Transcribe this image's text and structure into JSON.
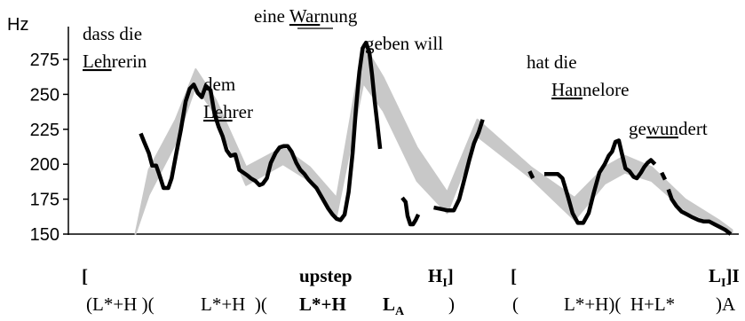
{
  "chart_data": {
    "type": "line",
    "ylabel": "Hz",
    "ylim": [
      150,
      295
    ],
    "y_ticks": [
      "150",
      "175",
      "200",
      "225",
      "250",
      "275"
    ],
    "grid": false,
    "band_color": "#c8c8c8",
    "line_color": "#000000",
    "band": [
      {
        "t": 0.1,
        "lo": 150,
        "hi": 150
      },
      {
        "t": 0.12,
        "lo": 178,
        "hi": 196
      },
      {
        "t": 0.16,
        "lo": 215,
        "hi": 232
      },
      {
        "t": 0.19,
        "lo": 256,
        "hi": 268
      },
      {
        "t": 0.22,
        "lo": 235,
        "hi": 246
      },
      {
        "t": 0.265,
        "lo": 185,
        "hi": 198
      },
      {
        "t": 0.32,
        "lo": 200,
        "hi": 212
      },
      {
        "t": 0.36,
        "lo": 188,
        "hi": 198
      },
      {
        "t": 0.4,
        "lo": 163,
        "hi": 176
      },
      {
        "t": 0.44,
        "lo": 258,
        "hi": 286
      },
      {
        "t": 0.47,
        "lo": 238,
        "hi": 262
      },
      {
        "t": 0.52,
        "lo": 188,
        "hi": 212
      },
      {
        "t": 0.565,
        "lo": 165,
        "hi": 180
      },
      {
        "t": 0.61,
        "lo": 220,
        "hi": 232
      },
      {
        "t": 0.69,
        "lo": 190,
        "hi": 198
      },
      {
        "t": 0.755,
        "lo": 160,
        "hi": 176
      },
      {
        "t": 0.8,
        "lo": 186,
        "hi": 198
      },
      {
        "t": 0.83,
        "lo": 194,
        "hi": 206
      },
      {
        "t": 0.87,
        "lo": 188,
        "hi": 198
      },
      {
        "t": 0.92,
        "lo": 167,
        "hi": 175
      },
      {
        "t": 0.97,
        "lo": 156,
        "hi": 160
      },
      {
        "t": 0.99,
        "lo": 151,
        "hi": 153
      }
    ],
    "series": [
      {
        "values": [
          [
            0.108,
            222
          ],
          [
            0.113,
            216
          ],
          [
            0.12,
            208
          ],
          [
            0.125,
            199
          ],
          [
            0.131,
            199
          ],
          [
            0.136,
            192
          ],
          [
            0.142,
            183
          ],
          [
            0.149,
            183
          ],
          [
            0.154,
            190
          ],
          [
            0.161,
            208
          ],
          [
            0.168,
            225
          ],
          [
            0.175,
            245
          ],
          [
            0.181,
            254
          ],
          [
            0.187,
            257
          ],
          [
            0.193,
            251
          ],
          [
            0.199,
            248
          ],
          [
            0.205,
            256
          ],
          [
            0.212,
            253
          ],
          [
            0.218,
            236
          ],
          [
            0.224,
            227
          ],
          [
            0.23,
            220
          ],
          [
            0.236,
            210
          ],
          [
            0.242,
            206
          ],
          [
            0.249,
            207
          ],
          [
            0.255,
            196
          ],
          [
            0.261,
            194
          ],
          [
            0.267,
            192
          ],
          [
            0.272,
            190
          ],
          [
            0.279,
            188
          ],
          [
            0.285,
            185
          ],
          [
            0.29,
            186
          ],
          [
            0.296,
            190
          ],
          [
            0.302,
            201
          ],
          [
            0.309,
            208
          ],
          [
            0.315,
            212
          ],
          [
            0.321,
            213
          ],
          [
            0.327,
            213
          ],
          [
            0.333,
            209
          ],
          [
            0.34,
            201
          ],
          [
            0.346,
            196
          ],
          [
            0.352,
            193
          ],
          [
            0.358,
            189
          ],
          [
            0.364,
            186
          ],
          [
            0.37,
            183
          ],
          [
            0.376,
            178
          ],
          [
            0.382,
            173
          ],
          [
            0.388,
            168
          ],
          [
            0.394,
            164
          ],
          [
            0.4,
            161
          ],
          [
            0.406,
            160
          ],
          [
            0.412,
            164
          ],
          [
            0.418,
            180
          ],
          [
            0.424,
            208
          ],
          [
            0.429,
            240
          ],
          [
            0.434,
            266
          ],
          [
            0.439,
            283
          ],
          [
            0.444,
            287
          ],
          [
            0.449,
            280
          ],
          [
            0.453,
            264
          ],
          [
            0.457,
            245
          ],
          [
            0.461,
            228
          ],
          [
            0.465,
            211
          ]
        ]
      },
      {
        "values": [
          [
            0.498,
            176
          ],
          [
            0.503,
            173
          ],
          [
            0.506,
            163
          ],
          [
            0.51,
            157
          ],
          [
            0.514,
            157
          ],
          [
            0.518,
            160
          ],
          [
            0.522,
            164
          ]
        ]
      },
      {
        "values": [
          [
            0.545,
            169
          ],
          [
            0.555,
            168
          ],
          [
            0.565,
            167
          ],
          [
            0.575,
            167
          ],
          [
            0.583,
            175
          ],
          [
            0.59,
            188
          ],
          [
            0.598,
            203
          ],
          [
            0.605,
            215
          ],
          [
            0.612,
            223
          ],
          [
            0.618,
            232
          ]
        ]
      },
      {
        "values": [
          [
            0.688,
            195
          ],
          [
            0.693,
            190
          ]
        ]
      },
      {
        "values": [
          [
            0.71,
            193
          ],
          [
            0.72,
            193
          ],
          [
            0.73,
            193
          ],
          [
            0.737,
            190
          ],
          [
            0.745,
            177
          ],
          [
            0.752,
            165
          ],
          [
            0.76,
            158
          ],
          [
            0.768,
            158
          ],
          [
            0.776,
            165
          ],
          [
            0.784,
            180
          ],
          [
            0.792,
            194
          ],
          [
            0.8,
            200
          ],
          [
            0.806,
            206
          ],
          [
            0.811,
            209
          ],
          [
            0.816,
            216
          ],
          [
            0.821,
            217
          ],
          [
            0.826,
            207
          ],
          [
            0.831,
            197
          ],
          [
            0.837,
            195
          ],
          [
            0.843,
            191
          ],
          [
            0.848,
            190
          ],
          [
            0.854,
            194
          ],
          [
            0.859,
            198
          ],
          [
            0.864,
            201
          ],
          [
            0.869,
            203
          ],
          [
            0.875,
            200
          ]
        ]
      },
      {
        "values": [
          [
            0.885,
            194
          ],
          [
            0.89,
            189
          ]
        ]
      },
      {
        "values": [
          [
            0.895,
            182
          ],
          [
            0.9,
            175
          ],
          [
            0.907,
            170
          ],
          [
            0.915,
            166
          ],
          [
            0.923,
            164
          ],
          [
            0.931,
            162
          ],
          [
            0.94,
            160
          ],
          [
            0.948,
            159
          ],
          [
            0.956,
            159
          ],
          [
            0.964,
            157
          ],
          [
            0.972,
            155
          ],
          [
            0.98,
            153
          ],
          [
            0.988,
            150
          ]
        ]
      }
    ]
  },
  "words": {
    "w1": "dass die",
    "w2_u": "Leh",
    "w2_rest": "rerin",
    "w3": "dem",
    "w4_u": "Leh",
    "w4_rest": "rer",
    "w5_pre": "eine ",
    "w5_u": "War",
    "w5_rest": "nung",
    "w6": "geben will",
    "w7": "hat die",
    "w8_u": "Han",
    "w8_rest": "nelore",
    "w9_pre": "ge",
    "w9_u": "wun",
    "w9_rest": "dert"
  },
  "labels": {
    "bracket_left": "[",
    "upstep": "upstep",
    "h_i": "H",
    "h_i_sub": "I",
    "h_close": "]",
    "bracket2": "[",
    "l_i": "L",
    "l_i_sub": "I",
    "l_i_close": "]I",
    "r2_a": "(L*+H )(",
    "r2_b": "L*+H  )(",
    "r2_c": "L*+H",
    "r2_d": "L",
    "r2_d_sub": "A",
    "r2_e": ")",
    "r2_f": "(",
    "r2_g": "L*+H)(  H+L*",
    "r2_h": ")A"
  }
}
